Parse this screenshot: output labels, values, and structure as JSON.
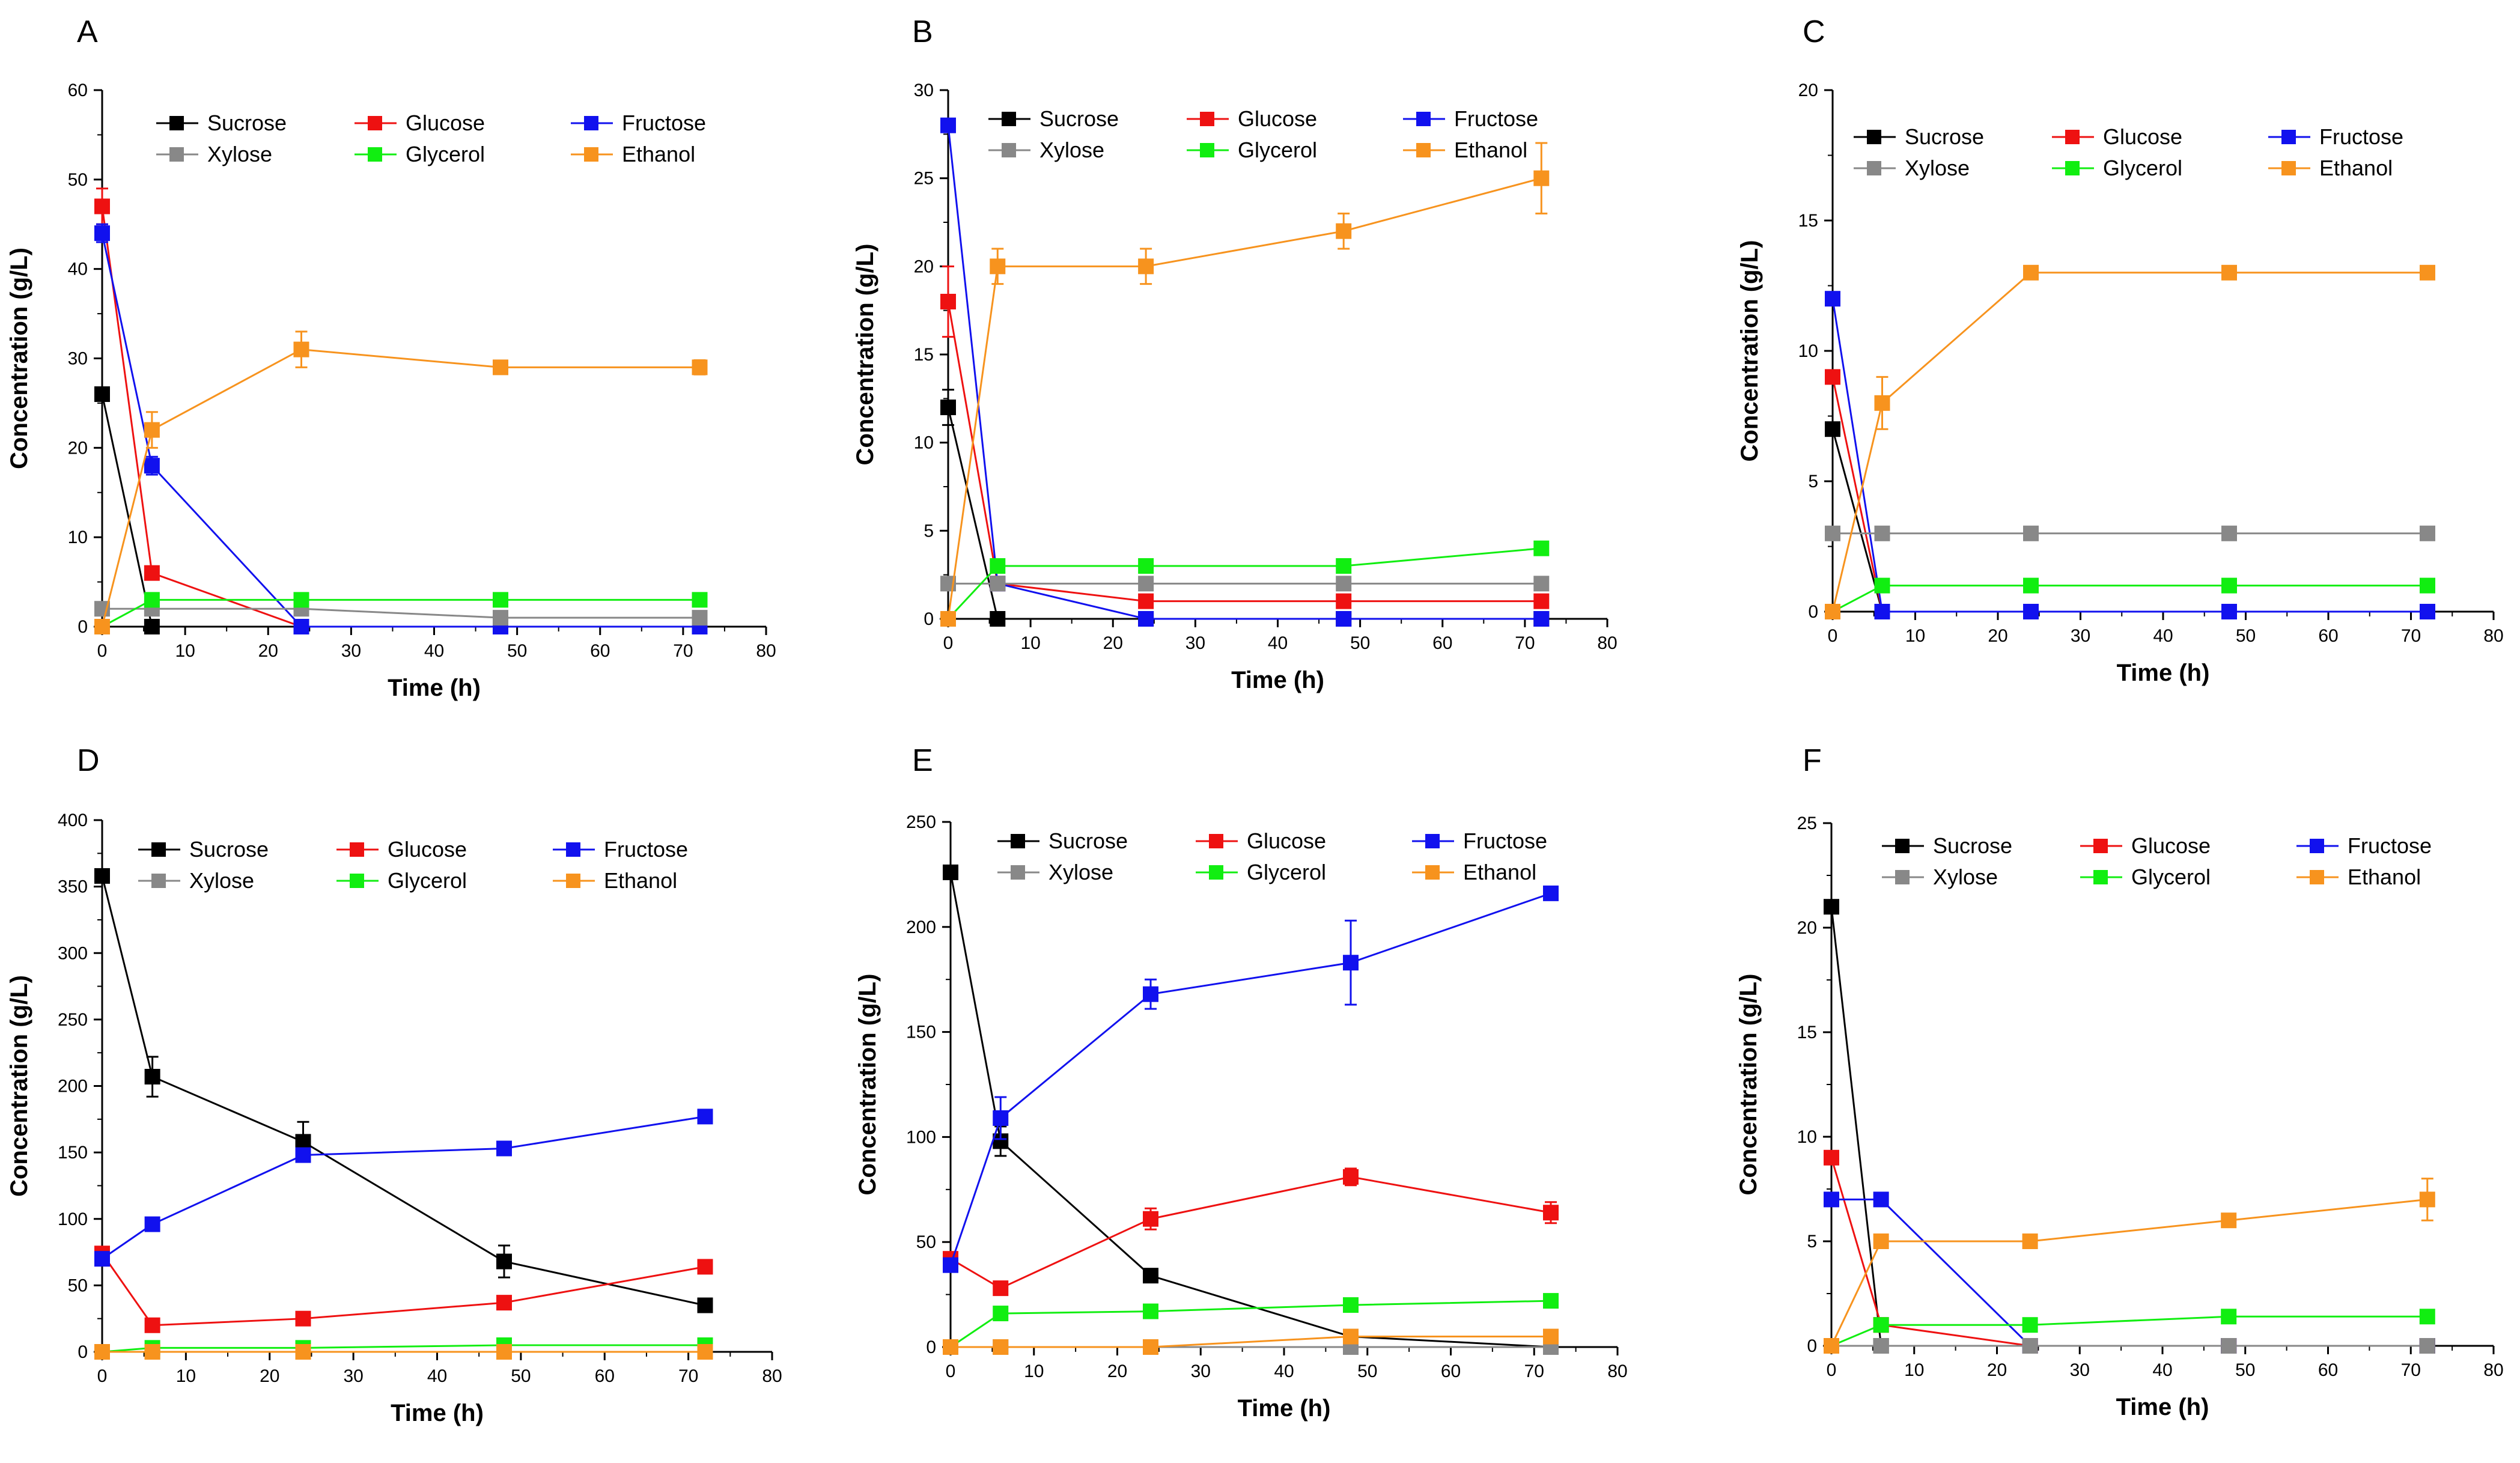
{
  "series_styles": {
    "Sucrose": "#000000",
    "Glucose": "#ee1111",
    "Fructose": "#1111ee",
    "Xylose": "#888888",
    "Glycerol": "#11ee11",
    "Ethanol": "#f7931e"
  },
  "chart_data": [
    {
      "type": "line",
      "panel": "A",
      "title": "",
      "xlabel": "Time (h)",
      "ylabel": "Concentration (g/L)",
      "xlim": [
        0,
        80
      ],
      "ylim": [
        0,
        60
      ],
      "xticks": [
        "0",
        "10",
        "20",
        "30",
        "40",
        "50",
        "60",
        "70",
        "80"
      ],
      "yticks": [
        "0",
        "10",
        "20",
        "30",
        "40",
        "50",
        "60"
      ],
      "x": [
        0,
        6,
        24,
        48,
        72
      ],
      "legend_rows": [
        [
          "Sucrose",
          "Glucose",
          "Fructose"
        ],
        [
          "Xylose",
          "Glycerol",
          "Ethanol"
        ]
      ],
      "series": [
        {
          "name": "Sucrose",
          "values": [
            26,
            0,
            0,
            0,
            0
          ],
          "errors": [
            0,
            0,
            0,
            0,
            0
          ]
        },
        {
          "name": "Glucose",
          "values": [
            47,
            6,
            0,
            0,
            0
          ],
          "errors": [
            2,
            0,
            0,
            0,
            0
          ]
        },
        {
          "name": "Fructose",
          "values": [
            44,
            18,
            0,
            0,
            0
          ],
          "errors": [
            1,
            1,
            0,
            0,
            0
          ]
        },
        {
          "name": "Xylose",
          "values": [
            2,
            2,
            2,
            1,
            1
          ],
          "errors": [
            0,
            0,
            0,
            0,
            0
          ]
        },
        {
          "name": "Glycerol",
          "values": [
            0,
            3,
            3,
            3,
            3
          ],
          "errors": [
            0,
            0,
            0,
            0.5,
            0
          ]
        },
        {
          "name": "Ethanol",
          "values": [
            0,
            22,
            31,
            29,
            29
          ],
          "errors": [
            0,
            2,
            2,
            0.5,
            0.8
          ]
        }
      ]
    },
    {
      "type": "line",
      "panel": "B",
      "title": "",
      "xlabel": "Time (h)",
      "ylabel": "Concentration (g/L)",
      "xlim": [
        0,
        80
      ],
      "ylim": [
        0,
        30
      ],
      "xticks": [
        "0",
        "10",
        "20",
        "30",
        "40",
        "50",
        "60",
        "70",
        "80"
      ],
      "yticks": [
        "0",
        "5",
        "10",
        "15",
        "20",
        "25",
        "30"
      ],
      "x": [
        0,
        6,
        24,
        48,
        72
      ],
      "legend_rows": [
        [
          "Sucrose",
          "Glucose",
          "Fructose"
        ],
        [
          "Xylose",
          "Glycerol",
          "Ethanol"
        ]
      ],
      "series": [
        {
          "name": "Sucrose",
          "values": [
            12,
            0,
            0,
            0,
            0
          ],
          "errors": [
            1,
            0,
            0,
            0,
            0
          ]
        },
        {
          "name": "Glucose",
          "values": [
            18,
            2,
            1,
            1,
            1
          ],
          "errors": [
            2,
            0,
            0,
            0,
            0
          ]
        },
        {
          "name": "Fructose",
          "values": [
            28,
            2,
            0,
            0,
            0
          ],
          "errors": [
            0,
            0,
            0,
            0,
            0
          ]
        },
        {
          "name": "Xylose",
          "values": [
            2,
            2,
            2,
            2,
            2
          ],
          "errors": [
            0,
            0,
            0,
            0,
            0
          ]
        },
        {
          "name": "Glycerol",
          "values": [
            0,
            3,
            3,
            3,
            4
          ],
          "errors": [
            0,
            0,
            0,
            0,
            0
          ]
        },
        {
          "name": "Ethanol",
          "values": [
            0,
            20,
            20,
            22,
            25
          ],
          "errors": [
            0,
            1,
            1,
            1,
            2
          ]
        }
      ]
    },
    {
      "type": "line",
      "panel": "C",
      "title": "",
      "xlabel": "Time (h)",
      "ylabel": "Concentration (g/L)",
      "xlim": [
        0,
        80
      ],
      "ylim": [
        0,
        20
      ],
      "xticks": [
        "0",
        "10",
        "20",
        "30",
        "40",
        "50",
        "60",
        "70",
        "80"
      ],
      "yticks": [
        "0",
        "5",
        "10",
        "15",
        "20"
      ],
      "x": [
        0,
        6,
        24,
        48,
        72
      ],
      "legend_rows": [
        [
          "Sucrose",
          "Glucose",
          "Fructose"
        ],
        [
          "Xylose",
          "Glycerol",
          "Ethanol"
        ]
      ],
      "series": [
        {
          "name": "Sucrose",
          "values": [
            7,
            0,
            0,
            0,
            0
          ],
          "errors": [
            0,
            0,
            0,
            0,
            0
          ]
        },
        {
          "name": "Glucose",
          "values": [
            9,
            0,
            0,
            0,
            0
          ],
          "errors": [
            0,
            0,
            0,
            0,
            0
          ]
        },
        {
          "name": "Fructose",
          "values": [
            12,
            0,
            0,
            0,
            0
          ],
          "errors": [
            0,
            0,
            0,
            0,
            0
          ]
        },
        {
          "name": "Xylose",
          "values": [
            3,
            3,
            3,
            3,
            3
          ],
          "errors": [
            0,
            0,
            0,
            0,
            0
          ]
        },
        {
          "name": "Glycerol",
          "values": [
            0,
            1,
            1,
            1,
            1
          ],
          "errors": [
            0,
            0,
            0,
            0,
            0
          ]
        },
        {
          "name": "Ethanol",
          "values": [
            0,
            8,
            13,
            13,
            13
          ],
          "errors": [
            0,
            1,
            0,
            0,
            0
          ]
        }
      ]
    },
    {
      "type": "line",
      "panel": "D",
      "title": "",
      "xlabel": "Time (h)",
      "ylabel": "Concentration (g/L)",
      "xlim": [
        0,
        80
      ],
      "ylim": [
        0,
        400
      ],
      "xticks": [
        "0",
        "10",
        "20",
        "30",
        "40",
        "50",
        "60",
        "70",
        "80"
      ],
      "yticks": [
        "0",
        "50",
        "100",
        "150",
        "200",
        "250",
        "300",
        "350",
        "400"
      ],
      "x": [
        0,
        6,
        24,
        48,
        72
      ],
      "legend_rows": [
        [
          "Sucrose",
          "Glucose",
          "Fructose"
        ],
        [
          "Xylose",
          "Glycerol",
          "Ethanol"
        ]
      ],
      "series": [
        {
          "name": "Sucrose",
          "values": [
            358,
            207,
            158,
            68,
            35
          ],
          "errors": [
            0,
            15,
            15,
            12,
            0
          ]
        },
        {
          "name": "Glucose",
          "values": [
            74,
            20,
            25,
            37,
            64
          ],
          "errors": [
            0,
            0,
            0,
            0,
            5
          ]
        },
        {
          "name": "Fructose",
          "values": [
            70,
            96,
            148,
            153,
            177
          ],
          "errors": [
            0,
            0,
            0,
            0,
            5
          ]
        },
        {
          "name": "Xylose",
          "values": [
            0,
            0,
            0,
            0,
            0
          ],
          "errors": [
            0,
            0,
            0,
            0,
            0
          ]
        },
        {
          "name": "Glycerol",
          "values": [
            0,
            3,
            3,
            5,
            5
          ],
          "errors": [
            0,
            0,
            0,
            0,
            0
          ]
        },
        {
          "name": "Ethanol",
          "values": [
            0,
            0,
            0,
            0,
            0
          ],
          "errors": [
            0,
            0,
            0,
            0,
            0
          ]
        }
      ]
    },
    {
      "type": "line",
      "panel": "E",
      "title": "",
      "xlabel": "Time (h)",
      "ylabel": "Concentration (g/L)",
      "xlim": [
        0,
        80
      ],
      "ylim": [
        0,
        250
      ],
      "xticks": [
        "0",
        "10",
        "20",
        "30",
        "40",
        "50",
        "60",
        "70",
        "80"
      ],
      "yticks": [
        "0",
        "50",
        "100",
        "150",
        "200",
        "250"
      ],
      "x": [
        0,
        6,
        24,
        48,
        72
      ],
      "legend_rows": [
        [
          "Sucrose",
          "Glucose",
          "Fructose"
        ],
        [
          "Xylose",
          "Glycerol",
          "Ethanol"
        ]
      ],
      "series": [
        {
          "name": "Sucrose",
          "values": [
            226,
            98,
            34,
            5,
            0
          ],
          "errors": [
            0,
            7,
            0,
            0,
            0
          ]
        },
        {
          "name": "Glucose",
          "values": [
            42,
            28,
            61,
            81,
            64
          ],
          "errors": [
            0,
            0,
            5,
            4,
            5
          ]
        },
        {
          "name": "Fructose",
          "values": [
            39,
            109,
            168,
            183,
            216
          ],
          "errors": [
            0,
            10,
            7,
            20,
            0
          ]
        },
        {
          "name": "Xylose",
          "values": [
            0,
            0,
            0,
            0,
            0
          ],
          "errors": [
            0,
            0,
            0,
            0,
            0
          ]
        },
        {
          "name": "Glycerol",
          "values": [
            0,
            16,
            17,
            20,
            22
          ],
          "errors": [
            0,
            0,
            0,
            0,
            0
          ]
        },
        {
          "name": "Ethanol",
          "values": [
            0,
            0,
            0,
            5,
            5
          ],
          "errors": [
            0,
            0,
            0,
            0,
            0
          ]
        }
      ]
    },
    {
      "type": "line",
      "panel": "F",
      "title": "",
      "xlabel": "Time (h)",
      "ylabel": "Concentration (g/L)",
      "xlim": [
        0,
        80
      ],
      "ylim": [
        0,
        25
      ],
      "xticks": [
        "0",
        "10",
        "20",
        "30",
        "40",
        "50",
        "60",
        "70",
        "80"
      ],
      "yticks": [
        "0",
        "5",
        "10",
        "15",
        "20",
        "25"
      ],
      "x": [
        0,
        6,
        24,
        48,
        72
      ],
      "legend_rows": [
        [
          "Sucrose",
          "Glucose",
          "Fructose"
        ],
        [
          "Xylose",
          "Glycerol",
          "Ethanol"
        ]
      ],
      "series": [
        {
          "name": "Sucrose",
          "values": [
            21,
            0,
            0,
            0,
            0
          ],
          "errors": [
            0,
            0,
            0,
            0,
            0
          ]
        },
        {
          "name": "Glucose",
          "values": [
            9,
            1,
            0,
            0,
            0
          ],
          "errors": [
            0,
            0,
            0,
            0,
            0
          ]
        },
        {
          "name": "Fructose",
          "values": [
            7,
            7,
            0,
            0,
            0
          ],
          "errors": [
            0,
            0,
            0,
            0,
            0
          ]
        },
        {
          "name": "Xylose",
          "values": [
            0,
            0,
            0,
            0,
            0
          ],
          "errors": [
            0,
            0,
            0,
            0,
            0
          ]
        },
        {
          "name": "Glycerol",
          "values": [
            0,
            1,
            1,
            1.4,
            1.4
          ],
          "errors": [
            0,
            0,
            0,
            0,
            0
          ]
        },
        {
          "name": "Ethanol",
          "values": [
            0,
            5,
            5,
            6,
            7
          ],
          "errors": [
            0,
            0,
            0,
            0,
            1
          ]
        }
      ]
    }
  ]
}
